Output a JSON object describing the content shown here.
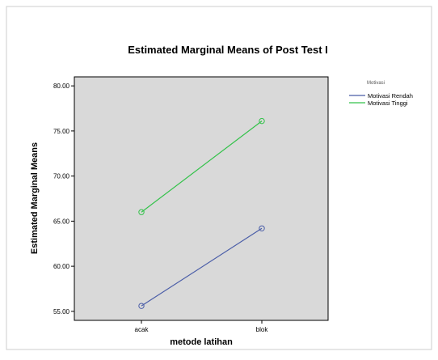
{
  "chart_data": {
    "type": "line",
    "title": "Estimated Marginal Means of Post Test I",
    "xlabel": "metode latihan",
    "ylabel": "Estimated Marginal Means",
    "categories": [
      "acak",
      "blok"
    ],
    "ylim": [
      54,
      81
    ],
    "yticks": [
      55,
      60,
      65,
      70,
      75,
      80
    ],
    "ytick_labels": [
      "55.00",
      "60.00",
      "65.00",
      "70.00",
      "75.00",
      "80.00"
    ],
    "grid": false,
    "legend": {
      "title": "Motivasi",
      "position": "right"
    },
    "series": [
      {
        "name": "Motivasi Rendah",
        "values": [
          55.6,
          64.2
        ],
        "color": "#4b5ea8"
      },
      {
        "name": "Motivasi Tinggi",
        "values": [
          66.0,
          76.1
        ],
        "color": "#33c24a"
      }
    ],
    "colors": {
      "plot_background": "#d9d9d9",
      "frame": "#000000",
      "axis_text": "#000000"
    }
  }
}
